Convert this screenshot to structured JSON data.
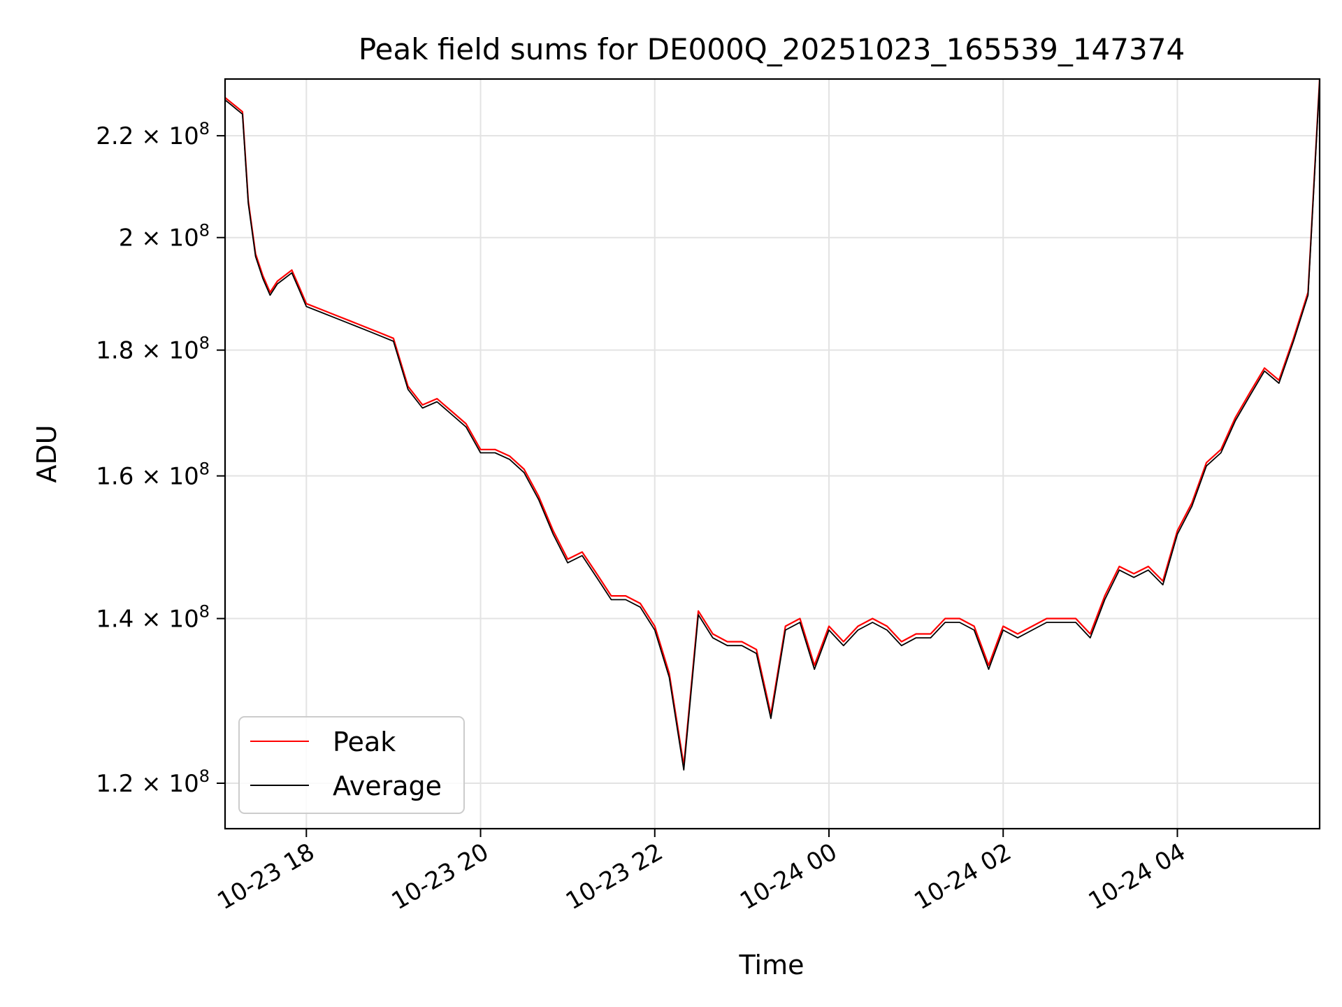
{
  "chart_data": {
    "type": "line",
    "title": "Peak field sums for DE000Q_20251023_165539_147374",
    "xlabel": "Time",
    "ylabel": "ADU",
    "y_scale": "log",
    "xlim": [
      "2025-10-23T17:04",
      "2025-10-24T05:38"
    ],
    "ylim": [
      115000000,
      232000000
    ],
    "x_ticks": [
      {
        "value": "2025-10-23T18:00",
        "label": "10-23 18"
      },
      {
        "value": "2025-10-23T20:00",
        "label": "10-23 20"
      },
      {
        "value": "2025-10-23T22:00",
        "label": "10-23 22"
      },
      {
        "value": "2025-10-24T00:00",
        "label": "10-24 00"
      },
      {
        "value": "2025-10-24T02:00",
        "label": "10-24 02"
      },
      {
        "value": "2025-10-24T04:00",
        "label": "10-24 04"
      }
    ],
    "y_ticks": [
      {
        "value": 120000000,
        "mantissa": "1.2",
        "exponent": "8"
      },
      {
        "value": 140000000,
        "mantissa": "1.4",
        "exponent": "8"
      },
      {
        "value": 160000000,
        "mantissa": "1.6",
        "exponent": "8"
      },
      {
        "value": 180000000,
        "mantissa": "1.8",
        "exponent": "8"
      },
      {
        "value": 200000000,
        "mantissa": "2",
        "exponent": "8"
      },
      {
        "value": 220000000,
        "mantissa": "2.2",
        "exponent": "8"
      }
    ],
    "grid": true,
    "legend_position": "lower-left",
    "x": [
      "2025-10-23T17:04",
      "2025-10-23T17:08",
      "2025-10-23T17:12",
      "2025-10-23T17:16",
      "2025-10-23T17:20",
      "2025-10-23T17:25",
      "2025-10-23T17:30",
      "2025-10-23T17:35",
      "2025-10-23T17:40",
      "2025-10-23T17:45",
      "2025-10-23T17:50",
      "2025-10-23T17:55",
      "2025-10-23T18:00",
      "2025-10-23T18:10",
      "2025-10-23T18:20",
      "2025-10-23T18:30",
      "2025-10-23T18:40",
      "2025-10-23T18:50",
      "2025-10-23T19:00",
      "2025-10-23T19:10",
      "2025-10-23T19:20",
      "2025-10-23T19:30",
      "2025-10-23T19:40",
      "2025-10-23T19:50",
      "2025-10-23T20:00",
      "2025-10-23T20:10",
      "2025-10-23T20:20",
      "2025-10-23T20:30",
      "2025-10-23T20:40",
      "2025-10-23T20:50",
      "2025-10-23T21:00",
      "2025-10-23T21:10",
      "2025-10-23T21:20",
      "2025-10-23T21:30",
      "2025-10-23T21:40",
      "2025-10-23T21:50",
      "2025-10-23T22:00",
      "2025-10-23T22:10",
      "2025-10-23T22:20",
      "2025-10-23T22:30",
      "2025-10-23T22:40",
      "2025-10-23T22:50",
      "2025-10-23T23:00",
      "2025-10-23T23:10",
      "2025-10-23T23:20",
      "2025-10-23T23:30",
      "2025-10-23T23:40",
      "2025-10-23T23:50",
      "2025-10-24T00:00",
      "2025-10-24T00:10",
      "2025-10-24T00:20",
      "2025-10-24T00:30",
      "2025-10-24T00:40",
      "2025-10-24T00:50",
      "2025-10-24T01:00",
      "2025-10-24T01:10",
      "2025-10-24T01:20",
      "2025-10-24T01:30",
      "2025-10-24T01:40",
      "2025-10-24T01:50",
      "2025-10-24T02:00",
      "2025-10-24T02:10",
      "2025-10-24T02:20",
      "2025-10-24T02:30",
      "2025-10-24T02:40",
      "2025-10-24T02:50",
      "2025-10-24T03:00",
      "2025-10-24T03:10",
      "2025-10-24T03:20",
      "2025-10-24T03:30",
      "2025-10-24T03:40",
      "2025-10-24T03:50",
      "2025-10-24T04:00",
      "2025-10-24T04:10",
      "2025-10-24T04:20",
      "2025-10-24T04:30",
      "2025-10-24T04:40",
      "2025-10-24T04:50",
      "2025-10-24T05:00",
      "2025-10-24T05:10",
      "2025-10-24T05:20",
      "2025-10-24T05:30",
      "2025-10-24T05:38"
    ],
    "series": [
      {
        "name": "Peak",
        "color": "#ff0000",
        "values": [
          228000000,
          227000000,
          226000000,
          225000000,
          207000000,
          197000000,
          193000000,
          190000000,
          192000000,
          193000000,
          194000000,
          191000000,
          188000000,
          187000000,
          186000000,
          185000000,
          184000000,
          183000000,
          182000000,
          174000000,
          171000000,
          172000000,
          170000000,
          168000000,
          164000000,
          164000000,
          163000000,
          161000000,
          157000000,
          152000000,
          148000000,
          149000000,
          146000000,
          143000000,
          143000000,
          142000000,
          139000000,
          133000000,
          122000000,
          141000000,
          138000000,
          137000000,
          137000000,
          136000000,
          128000000,
          139000000,
          140000000,
          134000000,
          139000000,
          137000000,
          139000000,
          140000000,
          139000000,
          137000000,
          138000000,
          138000000,
          140000000,
          140000000,
          139000000,
          134000000,
          139000000,
          138000000,
          139000000,
          140000000,
          140000000,
          140000000,
          138000000,
          143000000,
          147000000,
          146000000,
          147000000,
          145000000,
          152000000,
          156000000,
          162000000,
          164000000,
          169000000,
          173000000,
          177000000,
          175000000,
          182000000,
          190000000,
          232000000
        ]
      },
      {
        "name": "Average",
        "color": "#000000",
        "values": [
          227500000,
          226500000,
          225500000,
          224500000,
          206500000,
          196500000,
          192500000,
          189500000,
          191500000,
          192500000,
          193500000,
          190500000,
          187500000,
          186500000,
          185500000,
          184500000,
          183500000,
          182500000,
          181500000,
          173500000,
          170500000,
          171500000,
          169500000,
          167500000,
          163500000,
          163500000,
          162500000,
          160500000,
          156500000,
          151500000,
          147500000,
          148500000,
          145500000,
          142500000,
          142500000,
          141500000,
          138500000,
          132500000,
          121500000,
          140500000,
          137500000,
          136500000,
          136500000,
          135500000,
          127500000,
          138500000,
          139500000,
          133500000,
          138500000,
          136500000,
          138500000,
          139500000,
          138500000,
          136500000,
          137500000,
          137500000,
          139500000,
          139500000,
          138500000,
          133500000,
          138500000,
          137500000,
          138500000,
          139500000,
          139500000,
          139500000,
          137500000,
          142500000,
          146500000,
          145500000,
          146500000,
          144500000,
          151500000,
          155500000,
          161500000,
          163500000,
          168500000,
          172500000,
          176500000,
          174500000,
          181500000,
          189500000,
          231500000
        ]
      }
    ]
  }
}
